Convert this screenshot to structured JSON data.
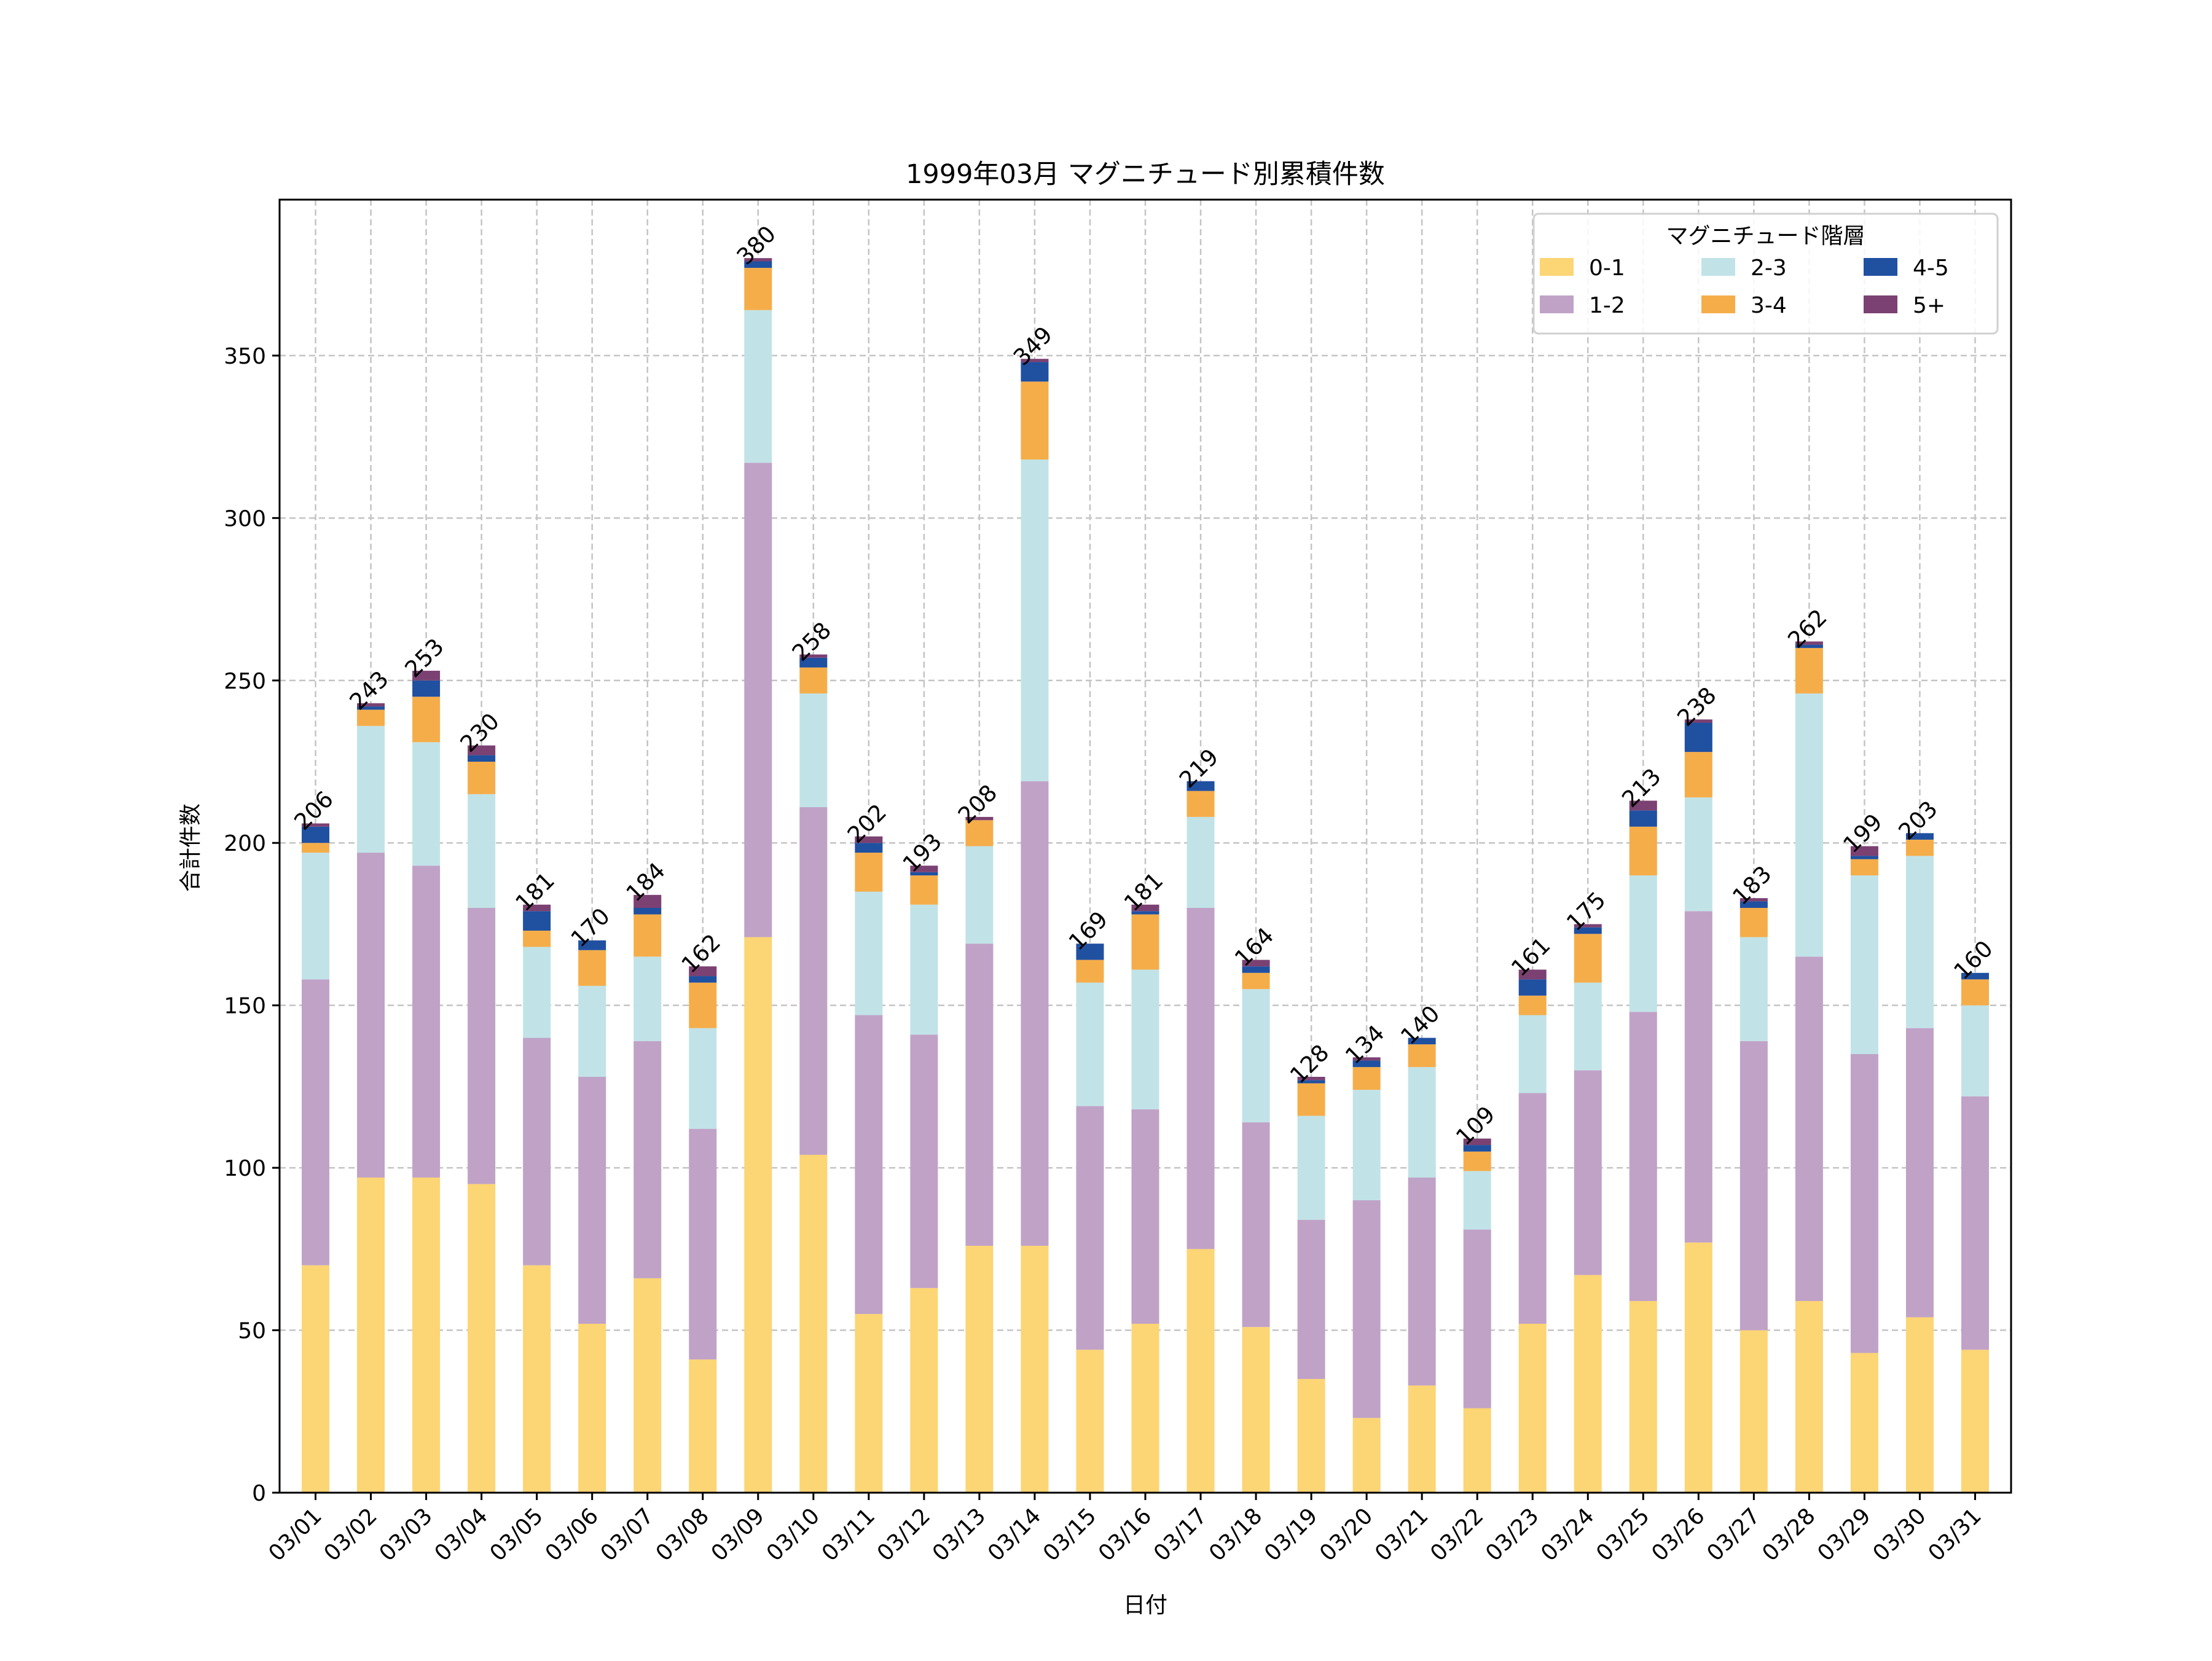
{
  "chart_data": {
    "type": "bar",
    "stacked": true,
    "title": "1999年03月 マグニチュード別累積件数",
    "xlabel": "日付",
    "ylabel": "合計件数",
    "ylim": [
      0,
      398
    ],
    "yticks": [
      0,
      50,
      100,
      150,
      200,
      250,
      300,
      350
    ],
    "grid": true,
    "legend": {
      "title": "マグニチュード階層",
      "placement": "top-right",
      "columns": 3
    },
    "categories": [
      "03/01",
      "03/02",
      "03/03",
      "03/04",
      "03/05",
      "03/06",
      "03/07",
      "03/08",
      "03/09",
      "03/10",
      "03/11",
      "03/12",
      "03/13",
      "03/14",
      "03/15",
      "03/16",
      "03/17",
      "03/18",
      "03/19",
      "03/20",
      "03/21",
      "03/22",
      "03/23",
      "03/24",
      "03/25",
      "03/26",
      "03/27",
      "03/28",
      "03/29",
      "03/30",
      "03/31"
    ],
    "totals": [
      206,
      243,
      253,
      230,
      181,
      170,
      184,
      162,
      380,
      258,
      202,
      193,
      208,
      349,
      169,
      181,
      219,
      164,
      128,
      134,
      140,
      109,
      161,
      175,
      213,
      238,
      183,
      262,
      199,
      203,
      160
    ],
    "series": [
      {
        "name": "0-1",
        "color": "#fcd574",
        "values": [
          70,
          97,
          97,
          95,
          70,
          52,
          66,
          41,
          171,
          104,
          55,
          63,
          76,
          76,
          44,
          52,
          75,
          51,
          35,
          23,
          33,
          26,
          52,
          67,
          59,
          77,
          50,
          59,
          43,
          54,
          44
        ]
      },
      {
        "name": "1-2",
        "color": "#c0a2c7",
        "values": [
          88,
          100,
          96,
          85,
          70,
          76,
          73,
          71,
          146,
          107,
          92,
          78,
          93,
          143,
          75,
          66,
          105,
          63,
          49,
          67,
          64,
          55,
          71,
          63,
          89,
          102,
          89,
          106,
          92,
          89,
          78
        ]
      },
      {
        "name": "2-3",
        "color": "#c1e3e7",
        "values": [
          39,
          39,
          38,
          35,
          28,
          28,
          26,
          31,
          47,
          35,
          38,
          40,
          30,
          99,
          38,
          43,
          28,
          41,
          32,
          34,
          34,
          18,
          24,
          27,
          42,
          35,
          32,
          81,
          55,
          53,
          28
        ]
      },
      {
        "name": "3-4",
        "color": "#f5ad4a",
        "values": [
          3,
          5,
          14,
          10,
          5,
          11,
          13,
          14,
          13,
          8,
          12,
          9,
          8,
          24,
          7,
          17,
          8,
          5,
          10,
          7,
          7,
          6,
          6,
          15,
          15,
          14,
          9,
          14,
          5,
          5,
          8
        ]
      },
      {
        "name": "4-5",
        "color": "#2050a0",
        "values": [
          5,
          1,
          5,
          2,
          6,
          3,
          2,
          2,
          2,
          3,
          3,
          1,
          0,
          6,
          5,
          1,
          3,
          2,
          1,
          2,
          2,
          2,
          5,
          2,
          5,
          9,
          2,
          1,
          1,
          2,
          2
        ]
      },
      {
        "name": "5+",
        "color": "#7b4172",
        "values": [
          1,
          1,
          3,
          3,
          2,
          0,
          4,
          3,
          1,
          1,
          2,
          2,
          1,
          1,
          0,
          2,
          0,
          2,
          1,
          1,
          0,
          2,
          3,
          1,
          3,
          1,
          1,
          1,
          3,
          0,
          0
        ]
      }
    ]
  }
}
